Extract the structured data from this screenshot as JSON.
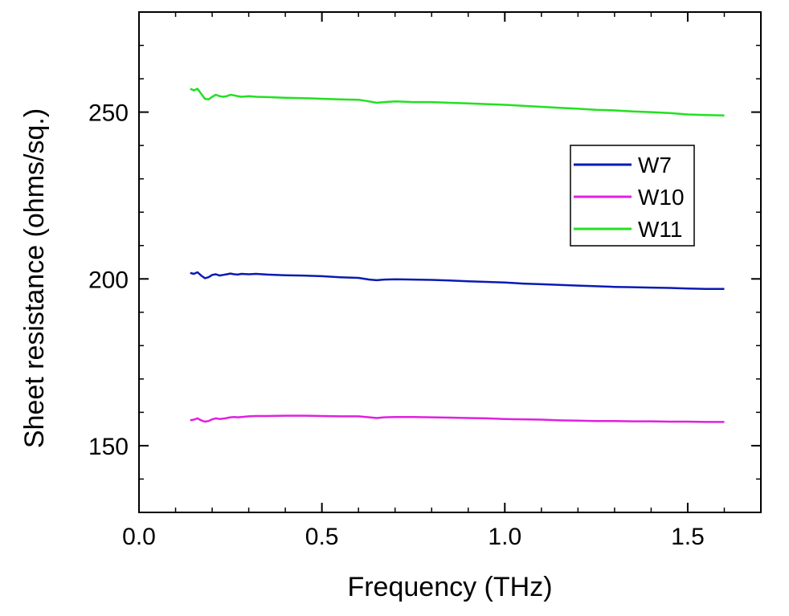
{
  "chart_data": {
    "type": "line",
    "title": "",
    "xlabel": "Frequency (THz)",
    "ylabel": "Sheet resistance (ohms/sq.)",
    "xlim": [
      0.0,
      1.7
    ],
    "ylim": [
      130,
      280
    ],
    "xticks": [
      0.0,
      0.5,
      1.0,
      1.5
    ],
    "xtick_labels": [
      "0.0",
      "0.5",
      "1.0",
      "1.5"
    ],
    "xminor_ticks": [
      0.1,
      0.2,
      0.3,
      0.4,
      0.6,
      0.7,
      0.8,
      0.9,
      1.1,
      1.2,
      1.3,
      1.4,
      1.6
    ],
    "yticks": [
      150,
      200,
      250
    ],
    "ytick_labels": [
      "150",
      "200",
      "250"
    ],
    "yminor_ticks": [
      140,
      160,
      170,
      180,
      190,
      210,
      220,
      230,
      240,
      260,
      270
    ],
    "grid": false,
    "legend_position": "upper-right",
    "series": [
      {
        "name": "W7",
        "color": "#0a1ab4",
        "x": [
          0.14,
          0.15,
          0.16,
          0.17,
          0.18,
          0.19,
          0.2,
          0.21,
          0.22,
          0.23,
          0.24,
          0.25,
          0.26,
          0.27,
          0.28,
          0.3,
          0.32,
          0.35,
          0.4,
          0.45,
          0.5,
          0.55,
          0.6,
          0.63,
          0.65,
          0.67,
          0.7,
          0.75,
          0.8,
          0.85,
          0.9,
          0.95,
          1.0,
          1.05,
          1.1,
          1.15,
          1.2,
          1.25,
          1.3,
          1.35,
          1.4,
          1.45,
          1.5,
          1.55,
          1.6
        ],
        "values": [
          201.8,
          201.5,
          202.0,
          201.0,
          200.2,
          200.5,
          201.2,
          201.4,
          201.0,
          201.2,
          201.4,
          201.6,
          201.4,
          201.3,
          201.5,
          201.4,
          201.5,
          201.3,
          201.1,
          201.0,
          200.8,
          200.5,
          200.3,
          199.8,
          199.6,
          199.8,
          199.9,
          199.8,
          199.7,
          199.5,
          199.3,
          199.1,
          198.9,
          198.6,
          198.4,
          198.2,
          198.0,
          197.8,
          197.6,
          197.5,
          197.4,
          197.3,
          197.1,
          197.0,
          197.0
        ]
      },
      {
        "name": "W10",
        "color": "#e020e0",
        "x": [
          0.14,
          0.15,
          0.16,
          0.17,
          0.18,
          0.19,
          0.2,
          0.21,
          0.22,
          0.23,
          0.24,
          0.25,
          0.26,
          0.27,
          0.28,
          0.3,
          0.32,
          0.35,
          0.4,
          0.45,
          0.5,
          0.55,
          0.6,
          0.63,
          0.65,
          0.67,
          0.7,
          0.75,
          0.8,
          0.85,
          0.9,
          0.95,
          1.0,
          1.05,
          1.1,
          1.15,
          1.2,
          1.25,
          1.3,
          1.35,
          1.4,
          1.45,
          1.5,
          1.55,
          1.6
        ],
        "values": [
          157.6,
          157.8,
          158.2,
          157.6,
          157.2,
          157.4,
          157.9,
          158.2,
          158.0,
          158.1,
          158.3,
          158.5,
          158.6,
          158.5,
          158.6,
          158.8,
          158.9,
          158.9,
          159.0,
          159.0,
          158.9,
          158.8,
          158.8,
          158.5,
          158.3,
          158.5,
          158.6,
          158.6,
          158.5,
          158.4,
          158.3,
          158.2,
          158.0,
          157.9,
          157.8,
          157.6,
          157.5,
          157.4,
          157.4,
          157.3,
          157.3,
          157.2,
          157.2,
          157.1,
          157.1
        ]
      },
      {
        "name": "W11",
        "color": "#22e022",
        "x": [
          0.14,
          0.15,
          0.16,
          0.17,
          0.18,
          0.19,
          0.2,
          0.21,
          0.22,
          0.23,
          0.24,
          0.25,
          0.26,
          0.27,
          0.28,
          0.3,
          0.32,
          0.35,
          0.4,
          0.45,
          0.5,
          0.55,
          0.6,
          0.63,
          0.65,
          0.67,
          0.7,
          0.75,
          0.8,
          0.85,
          0.9,
          0.95,
          1.0,
          1.05,
          1.1,
          1.15,
          1.2,
          1.25,
          1.3,
          1.35,
          1.4,
          1.45,
          1.5,
          1.55,
          1.6
        ],
        "values": [
          257.0,
          256.5,
          257.0,
          255.5,
          254.0,
          253.8,
          254.6,
          255.2,
          254.8,
          254.6,
          254.8,
          255.2,
          255.0,
          254.8,
          254.6,
          254.8,
          254.6,
          254.5,
          254.3,
          254.2,
          254.0,
          253.8,
          253.7,
          253.2,
          252.8,
          253.0,
          253.2,
          253.0,
          253.0,
          252.8,
          252.6,
          252.4,
          252.2,
          251.9,
          251.6,
          251.3,
          251.0,
          250.7,
          250.5,
          250.2,
          250.0,
          249.7,
          249.3,
          249.1,
          249.0
        ]
      }
    ]
  }
}
